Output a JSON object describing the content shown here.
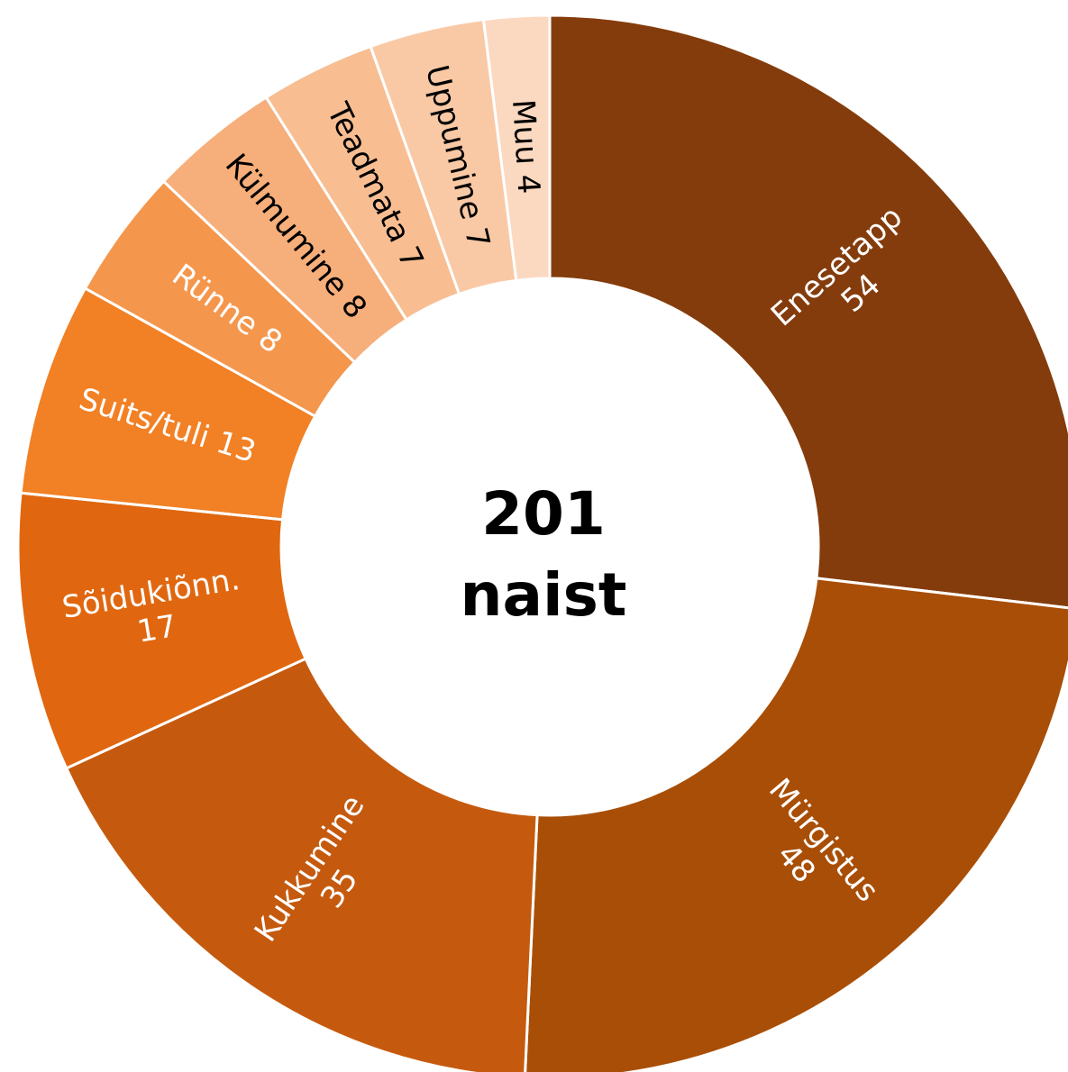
{
  "chart_data": {
    "type": "donut",
    "center_label": [
      "201",
      "naist"
    ],
    "categories": [
      "Enesetapp",
      "Mürgistus",
      "Kukkumine",
      "Sõidukiõnn.",
      "Suits/tuli",
      "Rünne",
      "Külmumine",
      "Teadmata",
      "Uppumine",
      "Muu"
    ],
    "values": [
      54,
      48,
      35,
      17,
      13,
      8,
      8,
      7,
      7,
      4
    ],
    "colors": [
      "#843c0c",
      "#a94e06",
      "#c55a0e",
      "#e0670f",
      "#f28024",
      "#f4964c",
      "#f6ae7a",
      "#f8be92",
      "#f9c9a6",
      "#fbd8c0"
    ],
    "label_colors": [
      "#ffffff",
      "#ffffff",
      "#ffffff",
      "#ffffff",
      "#ffffff",
      "#ffffff",
      "#000000",
      "#000000",
      "#000000",
      "#000000"
    ]
  }
}
